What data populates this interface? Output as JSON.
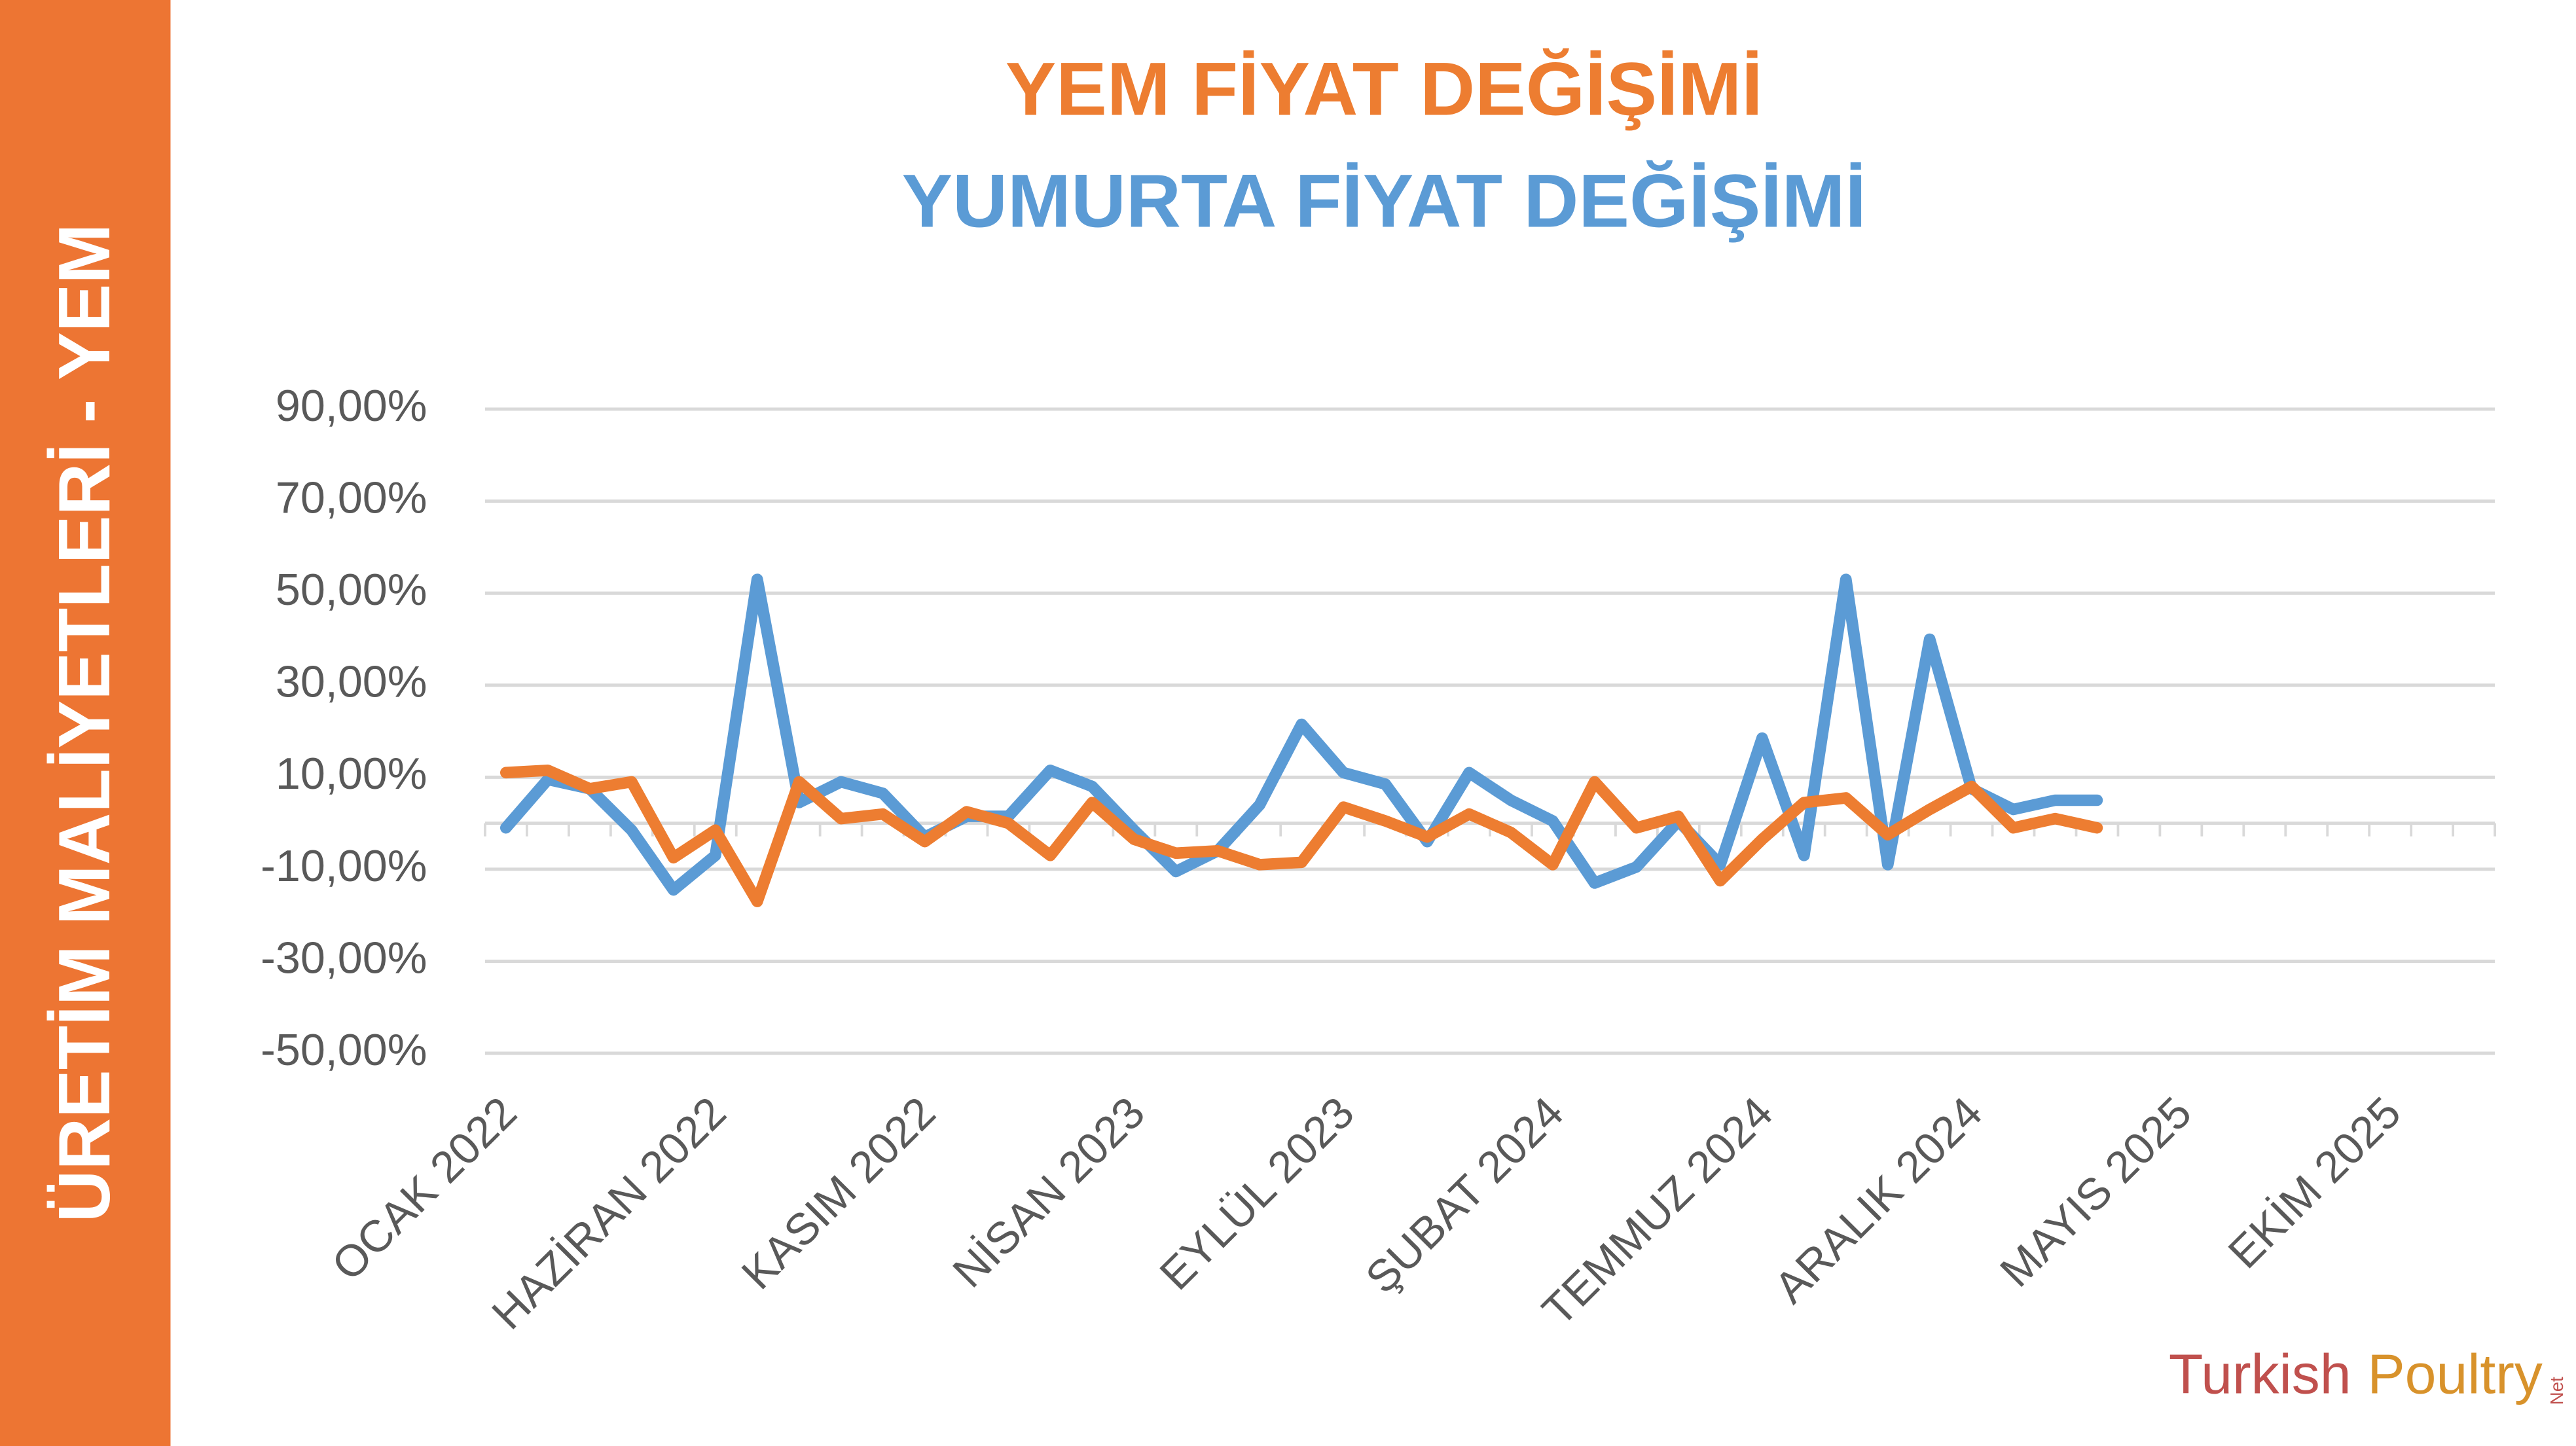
{
  "side_label": "ÜRETİM MALİYETLERİ - YEM",
  "logo": {
    "brand": "Turkish",
    "brand2": "Poultry",
    "suffix": "Net"
  },
  "chart_data": {
    "type": "line",
    "categories": [
      "OCAK 2022",
      null,
      null,
      null,
      null,
      "HAZİRAN 2022",
      null,
      null,
      null,
      null,
      "KASIM 2022",
      null,
      null,
      null,
      null,
      "NİSAN 2023",
      null,
      null,
      null,
      null,
      "EYLÜL 2023",
      null,
      null,
      null,
      null,
      "ŞUBAT 2024",
      null,
      null,
      null,
      null,
      "TEMMUZ 2024",
      null,
      null,
      null,
      null,
      "ARALIK 2024",
      null,
      null,
      null,
      null,
      "MAYIS 2025",
      null,
      null,
      null,
      null,
      "EKİM 2025",
      null,
      null
    ],
    "series": [
      {
        "name": "YEM FİYAT DEĞİŞİMİ",
        "color": "#ed7d31",
        "values": [
          11,
          11.5,
          7.5,
          9,
          -7.5,
          -1.5,
          -17,
          9,
          1,
          2,
          -4,
          2.5,
          0,
          -7,
          4.5,
          -3.5,
          -6.5,
          -6,
          -9,
          -8.5,
          3.5,
          0.5,
          -3,
          2,
          -2,
          -9,
          9,
          -1,
          1.5,
          -12.5,
          -3.5,
          4.5,
          5.5,
          -2.5,
          3,
          8,
          -1,
          1,
          -1,
          null,
          null,
          null,
          null,
          null,
          null,
          null,
          null,
          null
        ]
      },
      {
        "name": "YUMURTA FİYAT DEĞİŞİMİ",
        "color": "#5b9bd5",
        "values": [
          -1,
          9.5,
          7.5,
          -1.5,
          -14.5,
          -7,
          53,
          4.5,
          9,
          6.5,
          -3,
          1.5,
          1.5,
          11.5,
          8,
          -1.5,
          -10.5,
          -6,
          4,
          21.5,
          11,
          8.5,
          -4,
          11,
          5,
          0.5,
          -13,
          -9.5,
          0.5,
          -9,
          18.5,
          -7,
          53,
          -9,
          40,
          7.5,
          3,
          5,
          5,
          null,
          null,
          null,
          null,
          null,
          null,
          null,
          null,
          null
        ]
      }
    ],
    "ylim": [
      -50,
      90
    ],
    "yticks": [
      {
        "value": -50,
        "label": "-50,00%"
      },
      {
        "value": -30,
        "label": "-30,00%"
      },
      {
        "value": -10,
        "label": "-10,00%"
      },
      {
        "value": 10,
        "label": "10,00%"
      },
      {
        "value": 30,
        "label": "30,00%"
      },
      {
        "value": 50,
        "label": "50,00%"
      },
      {
        "value": 70,
        "label": "70,00%"
      },
      {
        "value": 90,
        "label": "90,00%"
      }
    ],
    "grid": true
  }
}
